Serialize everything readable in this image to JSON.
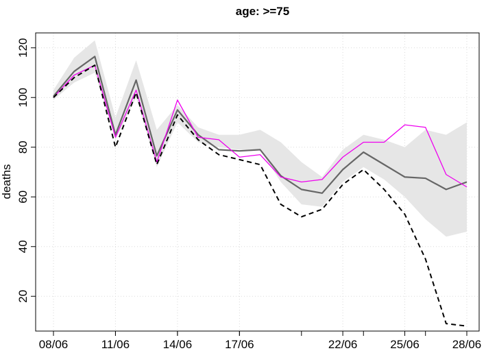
{
  "chart_data": {
    "type": "line",
    "title": "age: >=75",
    "xlabel": "",
    "ylabel": "deaths",
    "x": [
      "08/06",
      "09/06",
      "10/06",
      "11/06",
      "12/06",
      "13/06",
      "14/06",
      "15/06",
      "16/06",
      "17/06",
      "18/06",
      "19/06",
      "20/06",
      "21/06",
      "22/06",
      "23/06",
      "24/06",
      "25/06",
      "26/06",
      "27/06",
      "28/06"
    ],
    "x_tick_labels": [
      "08/06",
      "11/06",
      "14/06",
      "17/06",
      "22/06",
      "25/06",
      "28/06"
    ],
    "y_ticks": [
      20,
      40,
      60,
      80,
      100,
      120
    ],
    "xlim": [
      "08/06",
      "28/06"
    ],
    "ylim": [
      6,
      126
    ],
    "grid": true,
    "series": [
      {
        "role": "band",
        "color": "#e6e6e6",
        "lower": [
          99,
          106,
          110,
          83,
          100,
          72,
          90,
          82,
          80,
          79,
          79,
          66,
          57,
          56,
          66,
          72,
          67,
          60,
          51,
          44,
          46
        ],
        "upper": [
          103,
          116,
          123,
          92,
          115,
          87,
          97,
          88,
          85,
          85,
          87,
          82,
          74,
          68,
          79,
          85,
          83,
          80,
          87,
          85,
          90
        ]
      },
      {
        "role": "solid",
        "color": "#666666",
        "values": [
          100.5,
          110.5,
          116.5,
          85,
          107,
          76.5,
          95,
          85,
          79,
          78.5,
          79,
          68.5,
          63,
          61.5,
          71,
          78,
          73,
          68,
          67.5,
          63,
          66
        ]
      },
      {
        "role": "magenta",
        "color": "#ee00ee",
        "values": [
          100,
          109,
          113,
          84,
          103,
          74,
          99,
          84,
          83,
          76,
          77,
          68,
          66,
          67,
          76,
          82,
          82,
          89,
          88,
          69,
          64
        ]
      },
      {
        "role": "dashed",
        "color": "#000000",
        "values": [
          100,
          108,
          113,
          80,
          102,
          73,
          93,
          83,
          77,
          75,
          73,
          57,
          52,
          55,
          65,
          71,
          63,
          53,
          35,
          9,
          8
        ]
      }
    ]
  }
}
